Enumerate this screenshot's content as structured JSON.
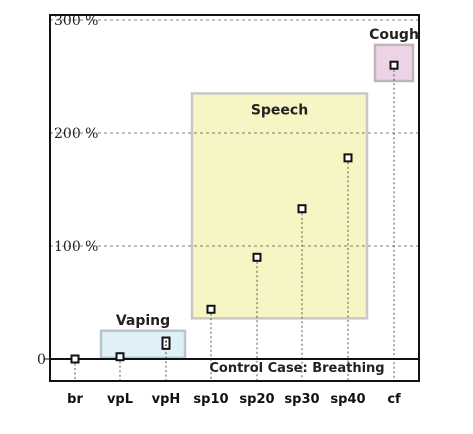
{
  "chart_data": {
    "type": "scatter",
    "categories": [
      "br",
      "vpL",
      "vpH",
      "sp10",
      "sp20",
      "sp30",
      "sp40",
      "cf"
    ],
    "values": [
      0,
      2,
      14,
      44,
      90,
      133,
      178,
      260
    ],
    "ranges": {
      "vpH": [
        9,
        19
      ]
    },
    "yticks": [
      {
        "value": 0,
        "label": "0"
      },
      {
        "value": 100,
        "label": "100 %"
      },
      {
        "value": 200,
        "label": "200 %"
      },
      {
        "value": 300,
        "label": "300 %"
      }
    ],
    "ylim": [
      -20,
      318
    ],
    "grid": "horizontal-dashed",
    "regions": [
      {
        "label": "Vaping",
        "from": "vpL",
        "to": "vpH",
        "y": [
          1,
          25
        ],
        "color": "#dff0f8",
        "border": "#b8c6cc"
      },
      {
        "label": "Speech",
        "from": "sp10",
        "to": "sp40",
        "y": [
          36,
          235
        ],
        "color": "#f7f5c4",
        "border": "#c8c8c8"
      },
      {
        "label": "Cough",
        "from": "cf",
        "to": "cf",
        "y": [
          246,
          278
        ],
        "color": "#ecd3e6",
        "border": "#c0b5bd"
      }
    ],
    "baseline_label": "Control Case:  Breathing"
  }
}
